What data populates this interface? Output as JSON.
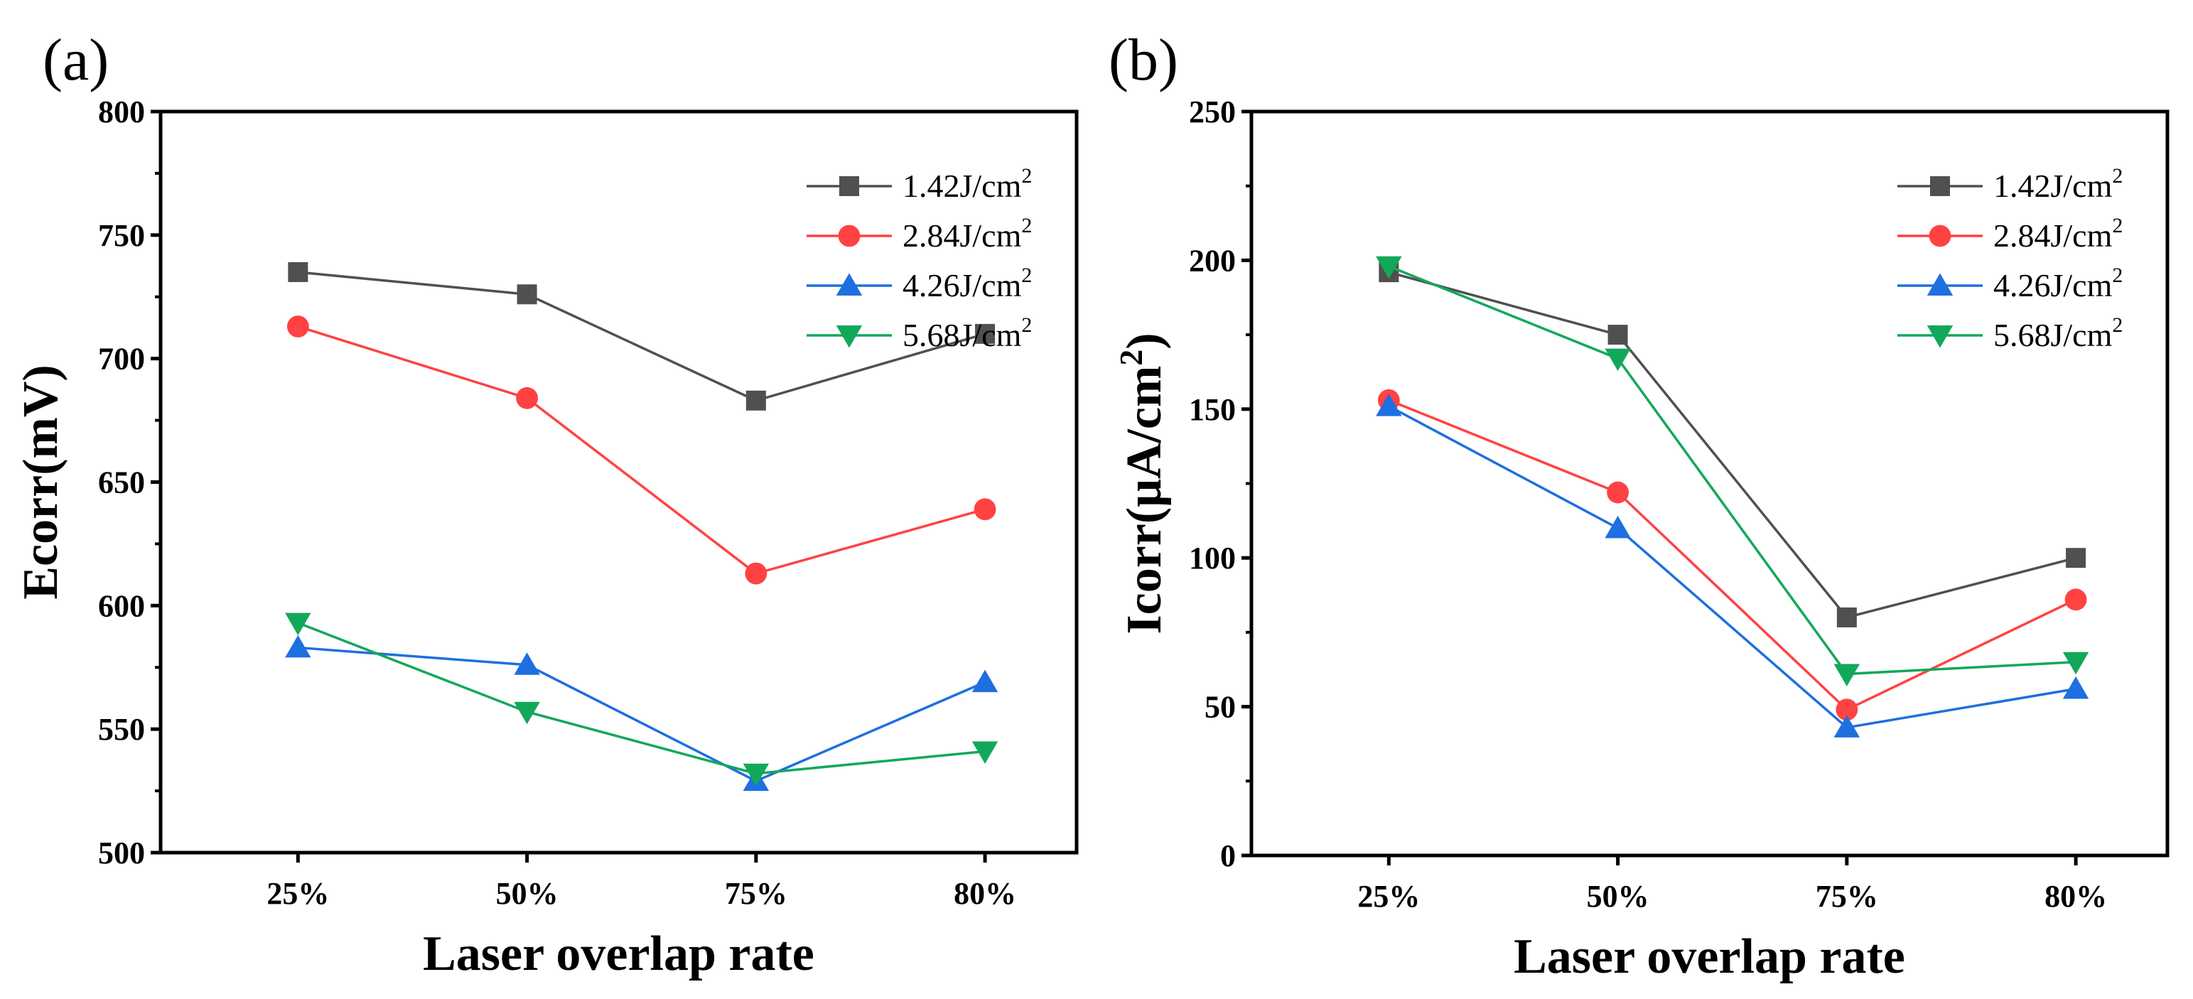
{
  "chart_data": [
    {
      "panel_label": "(a)",
      "type": "line",
      "title": "",
      "xlabel": "Laser overlap rate",
      "ylabel": "Ecorr(mV)",
      "categories": [
        "25%",
        "50%",
        "75%",
        "80%"
      ],
      "ylim": [
        500,
        800
      ],
      "yticks": [
        "500",
        "550",
        "600",
        "650",
        "700",
        "750",
        "800"
      ],
      "legend_position": "top-right",
      "grid": false,
      "series": [
        {
          "name": "1.42J/cm",
          "sup": "2",
          "color": "#505050",
          "marker": "square",
          "values": [
            735,
            726,
            683,
            710
          ]
        },
        {
          "name": "2.84J/cm",
          "sup": "2",
          "color": "#ff4242",
          "marker": "circle",
          "values": [
            713,
            684,
            613,
            639
          ]
        },
        {
          "name": "4.26J/cm",
          "sup": "2",
          "color": "#1e6fe0",
          "marker": "triangle-up",
          "values": [
            583,
            576,
            529,
            569
          ]
        },
        {
          "name": "5.68J/cm",
          "sup": "2",
          "color": "#12a85a",
          "marker": "triangle-down",
          "values": [
            593,
            557,
            532,
            541
          ]
        }
      ]
    },
    {
      "panel_label": "(b)",
      "type": "line",
      "title": "",
      "xlabel": "Laser overlap rate",
      "ylabel": "Icorr(μA/cm",
      "ylabel_sup": "2",
      "ylabel_end": ")",
      "categories": [
        "25%",
        "50%",
        "75%",
        "80%"
      ],
      "ylim": [
        0,
        250
      ],
      "yticks": [
        "0",
        "50",
        "100",
        "150",
        "200",
        "250"
      ],
      "legend_position": "top-right",
      "grid": false,
      "series": [
        {
          "name": "1.42J/cm",
          "sup": "2",
          "color": "#505050",
          "marker": "square",
          "values": [
            196,
            175,
            80,
            100
          ]
        },
        {
          "name": "2.84J/cm",
          "sup": "2",
          "color": "#ff4242",
          "marker": "circle",
          "values": [
            153,
            122,
            49,
            86
          ]
        },
        {
          "name": "4.26J/cm",
          "sup": "2",
          "color": "#1e6fe0",
          "marker": "triangle-up",
          "values": [
            151,
            110,
            43,
            56
          ]
        },
        {
          "name": "5.68J/cm",
          "sup": "2",
          "color": "#12a85a",
          "marker": "triangle-down",
          "values": [
            198,
            167,
            61,
            65
          ]
        }
      ]
    }
  ]
}
